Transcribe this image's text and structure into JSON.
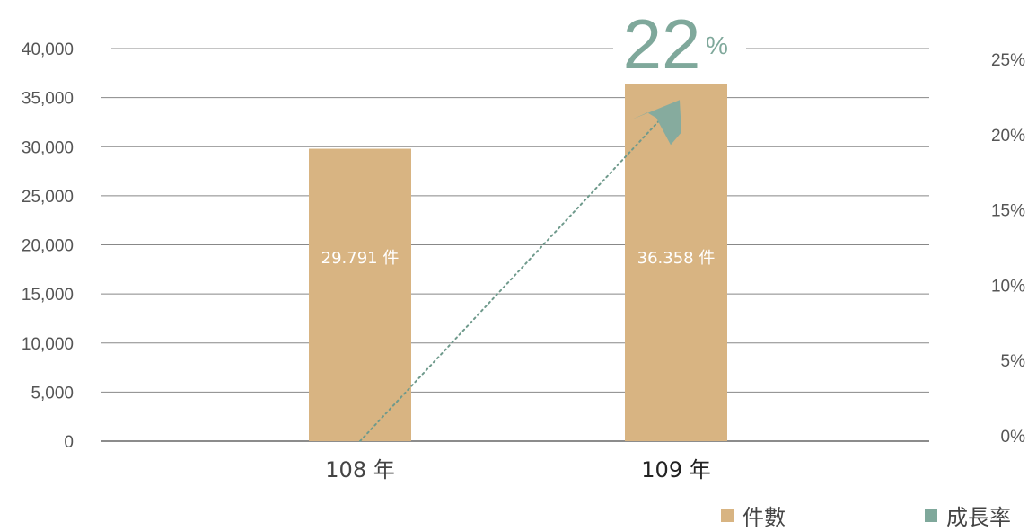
{
  "chart_data": {
    "type": "bar",
    "categories": [
      "108 年",
      "109 年"
    ],
    "series": [
      {
        "name": "件數",
        "values": [
          29791,
          36358
        ],
        "data_labels": [
          "29.791 件",
          "36.358 件"
        ]
      }
    ],
    "growth_rate": {
      "name": "成長率",
      "value": 22,
      "value_text": "22",
      "unit_text": "%"
    },
    "y_left": {
      "ylim": [
        0,
        40000
      ],
      "ticks": [
        0,
        5000,
        10000,
        15000,
        20000,
        25000,
        30000,
        35000,
        40000
      ],
      "tick_labels": [
        "0",
        "5,000",
        "10,000",
        "15,000",
        "20,000",
        "25,000",
        "30,000",
        "35,000",
        "40,000"
      ]
    },
    "y_right": {
      "ylim": [
        0,
        25
      ],
      "ticks": [
        0,
        5,
        10,
        15,
        20,
        25
      ],
      "tick_labels": [
        "0%",
        "5%",
        "10%",
        "15%",
        "20%",
        "25%"
      ]
    },
    "grid": true,
    "legend_position": "bottom-right",
    "colors": {
      "bar": "#d8b482",
      "growth": "#7fa89b",
      "grid": "#888888",
      "arrow": "#86ab9e"
    }
  }
}
